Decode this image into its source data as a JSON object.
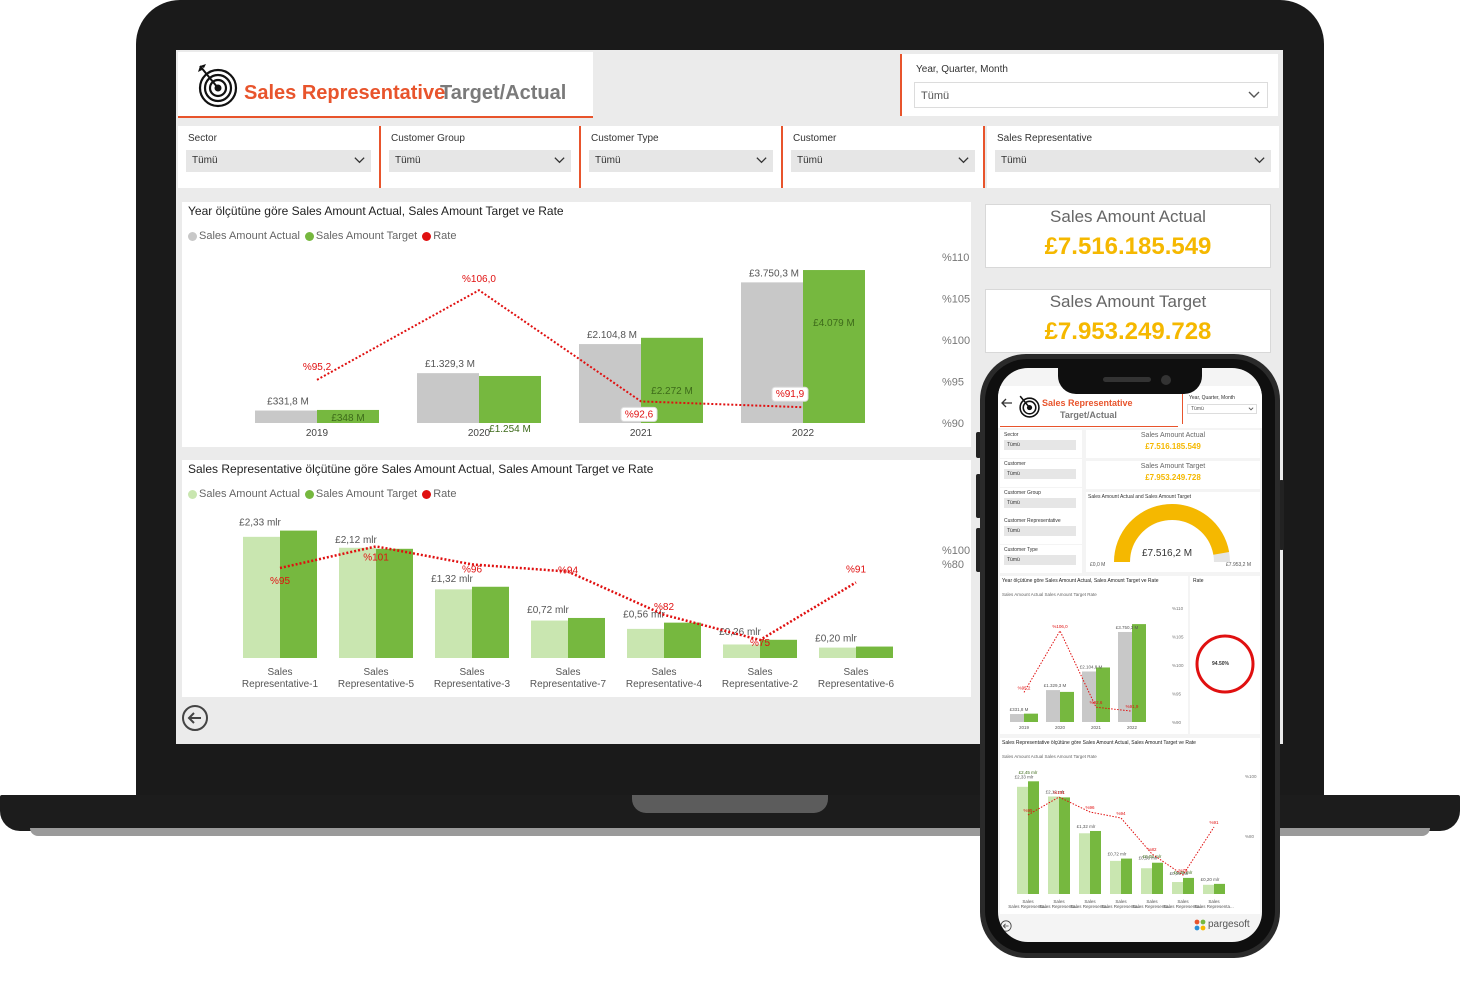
{
  "colors": {
    "accent": "#e8542c",
    "kpi": "#f5b800",
    "actual_gray": "#c8c8c8",
    "actual_light_green": "#c9e6b0",
    "target_green": "#76b83f",
    "rate_red": "#e01010"
  },
  "header": {
    "title": "Sales Representative",
    "subtitle": "Target/Actual",
    "logo_icon": "target-icon"
  },
  "slicers": {
    "year": {
      "label": "Year, Quarter, Month",
      "value": "Tümü"
    },
    "sector": {
      "label": "Sector",
      "value": "Tümü"
    },
    "customer_group": {
      "label": "Customer Group",
      "value": "Tümü"
    },
    "customer_type": {
      "label": "Customer Type",
      "value": "Tümü"
    },
    "customer": {
      "label": "Customer",
      "value": "Tümü"
    },
    "sales_rep": {
      "label": "Sales Representative",
      "value": "Tümü"
    }
  },
  "kpis": {
    "actual": {
      "label": "Sales Amount Actual",
      "value": "£7.516.185.549"
    },
    "target": {
      "label": "Sales Amount Target",
      "value": "£7.953.249.728"
    }
  },
  "legend": {
    "actual": "Sales Amount Actual",
    "target": "Sales Amount Target",
    "rate": "Rate"
  },
  "chart_data": [
    {
      "type": "bar",
      "title": "Year ölçütüne göre Sales Amount Actual, Sales Amount Target ve Rate",
      "categories": [
        "2019",
        "2020",
        "2021",
        "2022"
      ],
      "series": [
        {
          "name": "Sales Amount Actual",
          "values": [
            331.8,
            1329.3,
            2104.8,
            3750.3
          ],
          "labels": [
            "£331,8 M",
            "£1.329,3 M",
            "£2.104,8 M",
            "£3.750,3 M"
          ]
        },
        {
          "name": "Sales Amount Target",
          "values": [
            348,
            1254,
            2272,
            4079
          ],
          "labels": [
            "£348 M",
            "£1.254 M",
            "£2.272 M",
            "£4.079 M"
          ]
        },
        {
          "name": "Rate",
          "values": [
            95.2,
            106.0,
            92.6,
            91.9
          ],
          "labels": [
            "%95,2",
            "%106,0",
            "%92,6",
            "%91,9"
          ]
        }
      ],
      "y2_ticks": [
        "%110",
        "%105",
        "%100",
        "%95",
        "%90"
      ],
      "y2lim": [
        90,
        110
      ],
      "legend": "top-left"
    },
    {
      "type": "bar",
      "title": "Sales Representative ölçütüne göre Sales Amount Actual, Sales Amount Target ve Rate",
      "categories": [
        "Sales Representative-1",
        "Sales Representative-5",
        "Sales Representative-3",
        "Sales Representative-7",
        "Sales Representative-4",
        "Sales Representative-2",
        "Sales Representative-6"
      ],
      "category_lines": [
        [
          "Sales",
          "Representative-1"
        ],
        [
          "Sales",
          "Representative-5"
        ],
        [
          "Sales",
          "Representative-3"
        ],
        [
          "Sales",
          "Representative-7"
        ],
        [
          "Sales",
          "Representative-4"
        ],
        [
          "Sales",
          "Representative-2"
        ],
        [
          "Sales",
          "Representative-6"
        ]
      ],
      "series": [
        {
          "name": "Sales Amount Actual",
          "values": [
            2.33,
            2.12,
            1.32,
            0.72,
            0.56,
            0.26,
            0.2
          ],
          "labels": [
            "£2,33 mlr",
            "£2,12 mlr",
            "£1,32 mlr",
            "£0,72 mlr",
            "£0,56 mlr",
            "£0,26 mlr",
            "£0,20 mlr"
          ]
        },
        {
          "name": "Sales Amount Target",
          "values": [
            2.45,
            2.1,
            1.37,
            0.77,
            0.68,
            0.35,
            0.22
          ]
        },
        {
          "name": "Rate",
          "values": [
            95,
            101,
            96,
            94,
            82,
            75,
            91
          ],
          "labels": [
            "%95",
            "%101",
            "%96",
            "%94",
            "%82",
            "%75",
            "%91"
          ]
        }
      ],
      "y2_ticks": [
        "%100",
        "%80"
      ],
      "legend": "top-left"
    }
  ],
  "phone": {
    "title": "Sales Representative",
    "subtitle": "Target/Actual",
    "year_label": "Year, Quarter, Month",
    "year_value": "Tümü",
    "slicers": [
      {
        "label": "Sector",
        "value": "Tümü"
      },
      {
        "label": "Customer",
        "value": "Tümü"
      },
      {
        "label": "Customer Group",
        "value": "Tümü"
      },
      {
        "label": "Customer Representative",
        "value": "Tümü"
      },
      {
        "label": "Customer Type",
        "value": "Tümü"
      }
    ],
    "kpi_actual_label": "Sales Amount Actual",
    "kpi_actual_value": "£7.516.185.549",
    "kpi_target_label": "Sales Amount Target",
    "kpi_target_value": "£7.953.249.728",
    "gauge": {
      "title": "Sales Amount Actual and Sales Amount Target",
      "value": "£7.516,2 M",
      "min": "£0,0 M",
      "max": "£7.953,2 M",
      "fraction": 0.945
    },
    "year_chart_title": "Year ölçütüne göre Sales Amount Actual, Sales Amount Target ve Rate",
    "rate_title": "Rate",
    "rate_value": "94.50%",
    "rep_chart_title": "Sales Representative ölçütüne göre Sales Amount Actual, Sales Amount Target ve Rate",
    "rep_first_label": "£2,45 mlr",
    "rep_s5_label": "£0,08 mlr",
    "rep_s2_label": "£0,35 mlr",
    "rep_cat_short": "Sales Representa...",
    "rep_y_ticks": [
      "%100",
      "%80"
    ],
    "year_y_ticks": [
      "%110",
      "%105",
      "%100",
      "%95",
      "%90"
    ],
    "brand": "pargesoft"
  }
}
